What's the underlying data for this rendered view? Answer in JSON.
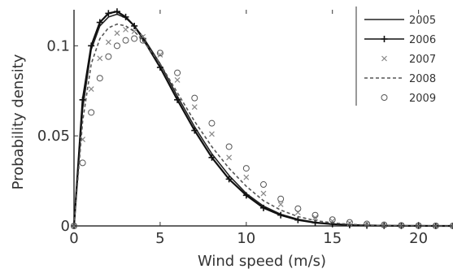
{
  "chart_data": {
    "type": "line",
    "xlabel": "Wind speed (m/s)",
    "ylabel": "Probability density",
    "xlim": [
      0,
      22
    ],
    "ylim": [
      0,
      0.12
    ],
    "xticks": [
      0,
      5,
      10,
      15,
      20
    ],
    "yticks": [
      0,
      0.05,
      0.1
    ],
    "ytick_labels": [
      "0",
      "0.05",
      "0.1"
    ],
    "grid": false,
    "legend_position": "top-right",
    "series": [
      {
        "name": "2005",
        "style": "solid",
        "marker": "none",
        "color": "#222222",
        "x": [
          0,
          0.5,
          1,
          1.5,
          2,
          2.5,
          3,
          3.5,
          4,
          5,
          6,
          7,
          8,
          9,
          10,
          11,
          12,
          13,
          14,
          15,
          16,
          17,
          18,
          19,
          20,
          21,
          22
        ],
        "y": [
          0,
          0.065,
          0.098,
          0.111,
          0.116,
          0.1175,
          0.1155,
          0.111,
          0.105,
          0.09,
          0.072,
          0.055,
          0.04,
          0.028,
          0.018,
          0.011,
          0.0065,
          0.0037,
          0.002,
          0.0011,
          0.0006,
          0.0003,
          0.00015,
          8e-05,
          4e-05,
          2e-05,
          1e-05
        ]
      },
      {
        "name": "2006",
        "style": "solid",
        "marker": "plus",
        "color": "#111111",
        "x": [
          0,
          0.5,
          1,
          1.5,
          2,
          2.5,
          3,
          3.5,
          4,
          5,
          6,
          7,
          8,
          9,
          10,
          11,
          12,
          13,
          14,
          15,
          16,
          17,
          18,
          19,
          20,
          21,
          22
        ],
        "y": [
          0,
          0.07,
          0.1,
          0.113,
          0.118,
          0.119,
          0.116,
          0.111,
          0.104,
          0.088,
          0.07,
          0.053,
          0.038,
          0.026,
          0.017,
          0.01,
          0.006,
          0.0033,
          0.0018,
          0.001,
          0.0005,
          0.00025,
          0.00012,
          6e-05,
          3e-05,
          1e-05,
          1e-05
        ]
      },
      {
        "name": "2007",
        "style": "none",
        "marker": "x",
        "color": "#888888",
        "x": [
          0,
          0.5,
          1,
          1.5,
          2,
          2.5,
          3,
          3.5,
          4,
          5,
          6,
          7,
          8,
          9,
          10,
          11,
          12,
          13,
          14,
          15,
          16,
          17,
          18,
          19,
          20,
          21,
          22
        ],
        "y": [
          0,
          0.048,
          0.076,
          0.093,
          0.102,
          0.107,
          0.109,
          0.108,
          0.105,
          0.095,
          0.081,
          0.066,
          0.051,
          0.038,
          0.027,
          0.018,
          0.012,
          0.0075,
          0.0046,
          0.0027,
          0.0015,
          0.0008,
          0.0004,
          0.0002,
          0.0001,
          5e-05,
          2e-05
        ]
      },
      {
        "name": "2008",
        "style": "dashed",
        "marker": "none",
        "color": "#555555",
        "x": [
          0,
          0.5,
          1,
          1.5,
          2,
          2.5,
          3,
          3.5,
          4,
          5,
          6,
          7,
          8,
          9,
          10,
          11,
          12,
          13,
          14,
          15,
          16,
          17,
          18,
          19,
          20,
          21,
          22
        ],
        "y": [
          0,
          0.058,
          0.09,
          0.104,
          0.11,
          0.112,
          0.111,
          0.108,
          0.103,
          0.09,
          0.074,
          0.058,
          0.044,
          0.032,
          0.022,
          0.014,
          0.0088,
          0.0052,
          0.003,
          0.0017,
          0.0009,
          0.00045,
          0.00022,
          0.0001,
          5e-05,
          2e-05,
          1e-05
        ]
      },
      {
        "name": "2009",
        "style": "none",
        "marker": "circle",
        "color": "#555555",
        "x": [
          0,
          0.5,
          1,
          1.5,
          2,
          2.5,
          3,
          3.5,
          4,
          5,
          6,
          7,
          8,
          9,
          10,
          11,
          12,
          13,
          14,
          15,
          16,
          17,
          18,
          19,
          20,
          21,
          22
        ],
        "y": [
          0,
          0.035,
          0.063,
          0.082,
          0.094,
          0.1,
          0.103,
          0.104,
          0.103,
          0.096,
          0.085,
          0.071,
          0.057,
          0.044,
          0.032,
          0.023,
          0.015,
          0.0096,
          0.006,
          0.0035,
          0.002,
          0.0011,
          0.0006,
          0.0003,
          0.00015,
          7e-05,
          3e-05
        ]
      }
    ]
  }
}
